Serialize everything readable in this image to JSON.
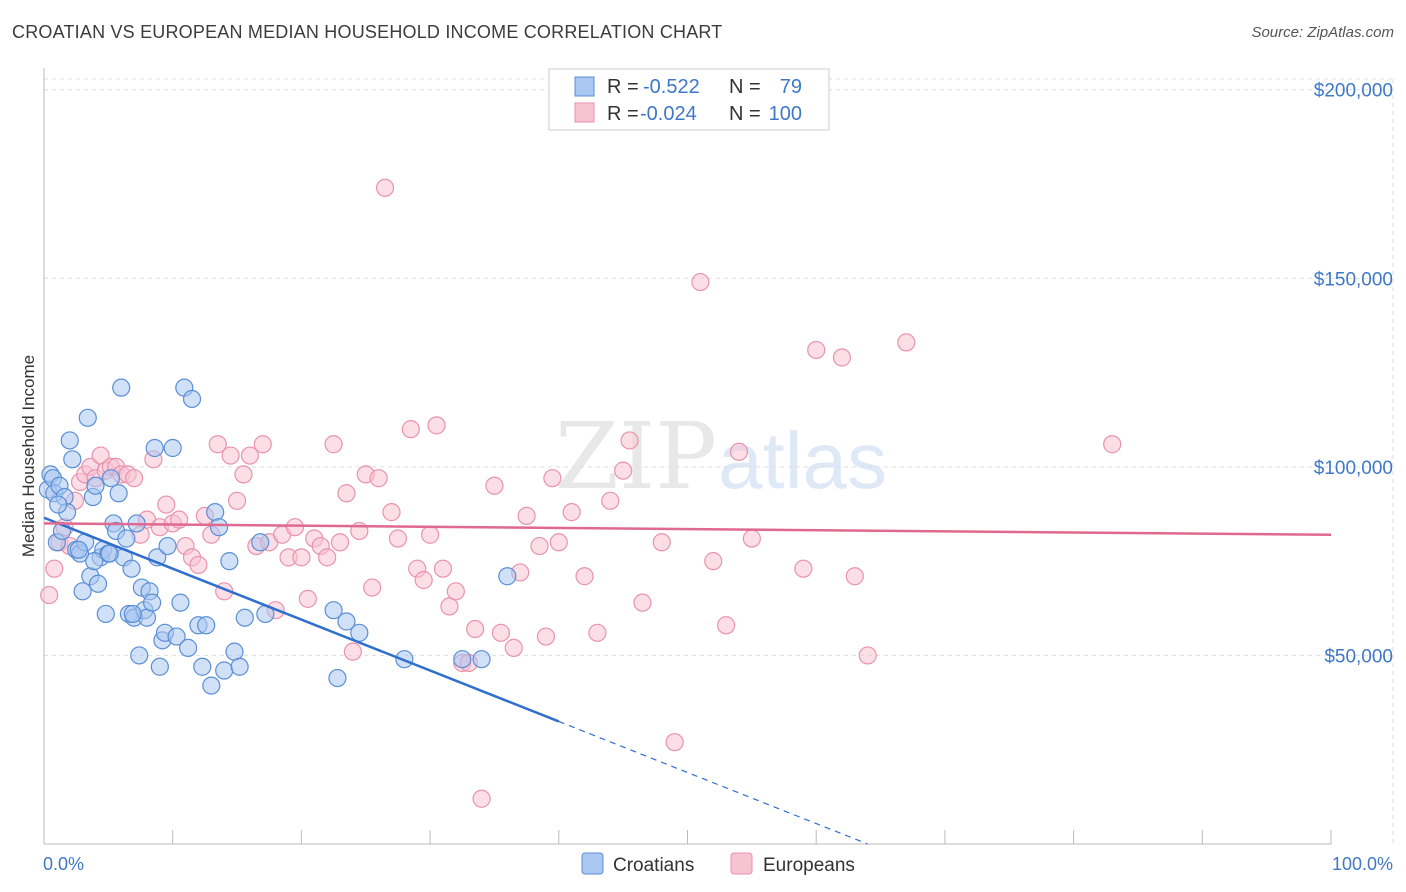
{
  "title": "CROATIAN VS EUROPEAN MEDIAN HOUSEHOLD INCOME CORRELATION CHART",
  "source": "Source: ZipAtlas.com",
  "watermark": {
    "zip": "ZIP",
    "atlas": "atlas"
  },
  "colors": {
    "croatians_fill": "#a9c7f0",
    "croatians_stroke": "#5b8fd6",
    "croatians_line": "#2f6fce",
    "europeans_fill": "#f7c3d2",
    "europeans_stroke": "#e993ae",
    "europeans_line": "#e0698f",
    "axis_text": "#3f78c9",
    "grid": "#dddddd"
  },
  "legend": {
    "rows": [
      {
        "r_label": "R =",
        "r_value": "-0.522",
        "n_label": "N =",
        "n_value": "79"
      },
      {
        "r_label": "R =",
        "r_value": "-0.024",
        "n_label": "N =",
        "n_value": "100"
      }
    ]
  },
  "chart_data": {
    "type": "scatter",
    "title": "CROATIAN VS EUROPEAN MEDIAN HOUSEHOLD INCOME CORRELATION CHART",
    "xlabel": "",
    "ylabel": "Median Household Income",
    "xlim": [
      0,
      100
    ],
    "ylim": [
      0,
      210000
    ],
    "x_tick_labels": [
      "0.0%",
      "100.0%"
    ],
    "y_ticks": [
      50000,
      100000,
      150000,
      200000
    ],
    "y_tick_labels": [
      "$50,000",
      "$100,000",
      "$150,000",
      "$200,000"
    ],
    "grid": true,
    "legend_position": "top-center",
    "series": [
      {
        "name": "Croatians",
        "r": -0.522,
        "n": 79,
        "trend": {
          "x0": 0,
          "y0": 86500,
          "x1": 40,
          "y1": 32500,
          "dashed_to_x": 64,
          "dashed_to_y": 0
        },
        "points": [
          [
            0.3,
            94000
          ],
          [
            0.5,
            98000
          ],
          [
            0.7,
            97000
          ],
          [
            0.8,
            93000
          ],
          [
            1.0,
            80000
          ],
          [
            1.2,
            95000
          ],
          [
            1.4,
            83000
          ],
          [
            1.6,
            92000
          ],
          [
            1.8,
            88000
          ],
          [
            2.0,
            107000
          ],
          [
            2.2,
            102000
          ],
          [
            2.5,
            78000
          ],
          [
            2.8,
            77000
          ],
          [
            3.0,
            67000
          ],
          [
            3.2,
            80000
          ],
          [
            3.4,
            113000
          ],
          [
            3.6,
            71000
          ],
          [
            3.8,
            92000
          ],
          [
            4.0,
            95000
          ],
          [
            4.2,
            69000
          ],
          [
            4.4,
            76000
          ],
          [
            4.6,
            78000
          ],
          [
            4.8,
            61000
          ],
          [
            5.0,
            77000
          ],
          [
            5.2,
            97000
          ],
          [
            5.4,
            85000
          ],
          [
            5.6,
            83000
          ],
          [
            5.8,
            93000
          ],
          [
            6.0,
            121000
          ],
          [
            6.2,
            76000
          ],
          [
            6.4,
            81000
          ],
          [
            6.6,
            61000
          ],
          [
            6.8,
            73000
          ],
          [
            7.0,
            60000
          ],
          [
            7.2,
            85000
          ],
          [
            7.4,
            50000
          ],
          [
            7.6,
            68000
          ],
          [
            7.8,
            62000
          ],
          [
            8.0,
            60000
          ],
          [
            8.2,
            67000
          ],
          [
            8.4,
            64000
          ],
          [
            8.6,
            105000
          ],
          [
            8.8,
            76000
          ],
          [
            9.0,
            47000
          ],
          [
            9.2,
            54000
          ],
          [
            9.4,
            56000
          ],
          [
            9.6,
            79000
          ],
          [
            10.0,
            105000
          ],
          [
            10.3,
            55000
          ],
          [
            10.6,
            64000
          ],
          [
            10.9,
            121000
          ],
          [
            11.2,
            52000
          ],
          [
            11.5,
            118000
          ],
          [
            12.0,
            58000
          ],
          [
            12.3,
            47000
          ],
          [
            12.6,
            58000
          ],
          [
            13.0,
            42000
          ],
          [
            13.3,
            88000
          ],
          [
            13.6,
            84000
          ],
          [
            14.0,
            46000
          ],
          [
            14.4,
            75000
          ],
          [
            14.8,
            51000
          ],
          [
            15.2,
            47000
          ],
          [
            15.6,
            60000
          ],
          [
            16.8,
            80000
          ],
          [
            17.2,
            61000
          ],
          [
            22.5,
            62000
          ],
          [
            23.5,
            59000
          ],
          [
            24.5,
            56000
          ],
          [
            28.0,
            49000
          ],
          [
            32.5,
            49000
          ],
          [
            34.0,
            49000
          ],
          [
            36.0,
            71000
          ],
          [
            22.8,
            44000
          ],
          [
            1.1,
            90000
          ],
          [
            2.7,
            78000
          ],
          [
            3.9,
            75000
          ],
          [
            5.1,
            77000
          ],
          [
            6.9,
            61000
          ]
        ]
      },
      {
        "name": "Europeans",
        "r": -0.024,
        "n": 100,
        "trend": {
          "x0": 0,
          "y0": 85000,
          "x1": 100,
          "y1": 82000
        },
        "points": [
          [
            0.4,
            66000
          ],
          [
            0.8,
            73000
          ],
          [
            1.2,
            80000
          ],
          [
            1.6,
            84000
          ],
          [
            2.0,
            79000
          ],
          [
            2.4,
            91000
          ],
          [
            2.8,
            96000
          ],
          [
            3.2,
            98000
          ],
          [
            3.6,
            100000
          ],
          [
            4.0,
            97000
          ],
          [
            4.4,
            103000
          ],
          [
            4.8,
            99000
          ],
          [
            5.2,
            100000
          ],
          [
            5.6,
            100000
          ],
          [
            6.0,
            98000
          ],
          [
            6.5,
            98000
          ],
          [
            7.0,
            97000
          ],
          [
            7.5,
            82000
          ],
          [
            8.0,
            86000
          ],
          [
            8.5,
            102000
          ],
          [
            9.0,
            84000
          ],
          [
            9.5,
            90000
          ],
          [
            10.0,
            85000
          ],
          [
            10.5,
            86000
          ],
          [
            11.0,
            79000
          ],
          [
            11.5,
            76000
          ],
          [
            12.0,
            74000
          ],
          [
            12.5,
            87000
          ],
          [
            13.0,
            82000
          ],
          [
            13.5,
            106000
          ],
          [
            14.0,
            67000
          ],
          [
            14.5,
            103000
          ],
          [
            15.0,
            91000
          ],
          [
            15.5,
            98000
          ],
          [
            16.0,
            103000
          ],
          [
            16.5,
            79000
          ],
          [
            17.0,
            106000
          ],
          [
            17.5,
            80000
          ],
          [
            18.0,
            62000
          ],
          [
            18.5,
            82000
          ],
          [
            19.0,
            76000
          ],
          [
            19.5,
            84000
          ],
          [
            20.0,
            76000
          ],
          [
            20.5,
            65000
          ],
          [
            21.0,
            81000
          ],
          [
            21.5,
            79000
          ],
          [
            22.0,
            76000
          ],
          [
            22.5,
            106000
          ],
          [
            23.0,
            80000
          ],
          [
            23.5,
            93000
          ],
          [
            24.0,
            51000
          ],
          [
            24.5,
            83000
          ],
          [
            25.0,
            98000
          ],
          [
            25.5,
            68000
          ],
          [
            26.0,
            97000
          ],
          [
            26.5,
            174000
          ],
          [
            27.0,
            88000
          ],
          [
            27.5,
            81000
          ],
          [
            28.5,
            110000
          ],
          [
            29.0,
            73000
          ],
          [
            29.5,
            70000
          ],
          [
            30.0,
            82000
          ],
          [
            30.5,
            111000
          ],
          [
            31.0,
            73000
          ],
          [
            31.5,
            63000
          ],
          [
            32.0,
            67000
          ],
          [
            32.5,
            48000
          ],
          [
            33.0,
            48000
          ],
          [
            33.5,
            57000
          ],
          [
            34.0,
            12000
          ],
          [
            35.0,
            95000
          ],
          [
            35.5,
            56000
          ],
          [
            36.5,
            52000
          ],
          [
            37.0,
            72000
          ],
          [
            37.5,
            87000
          ],
          [
            38.5,
            79000
          ],
          [
            39.0,
            55000
          ],
          [
            39.5,
            97000
          ],
          [
            40.0,
            80000
          ],
          [
            41.0,
            88000
          ],
          [
            42.0,
            71000
          ],
          [
            43.0,
            56000
          ],
          [
            44.0,
            91000
          ],
          [
            45.0,
            99000
          ],
          [
            45.5,
            107000
          ],
          [
            46.5,
            64000
          ],
          [
            48.0,
            80000
          ],
          [
            49.0,
            27000
          ],
          [
            51.0,
            149000
          ],
          [
            52.0,
            75000
          ],
          [
            53.0,
            58000
          ],
          [
            54.0,
            104000
          ],
          [
            55.0,
            81000
          ],
          [
            59.0,
            73000
          ],
          [
            60.0,
            131000
          ],
          [
            62.0,
            129000
          ],
          [
            63.0,
            71000
          ],
          [
            64.0,
            50000
          ],
          [
            67.0,
            133000
          ],
          [
            83.0,
            106000
          ]
        ]
      }
    ]
  },
  "bottom_legend": {
    "croatians": "Croatians",
    "europeans": "Europeans"
  }
}
